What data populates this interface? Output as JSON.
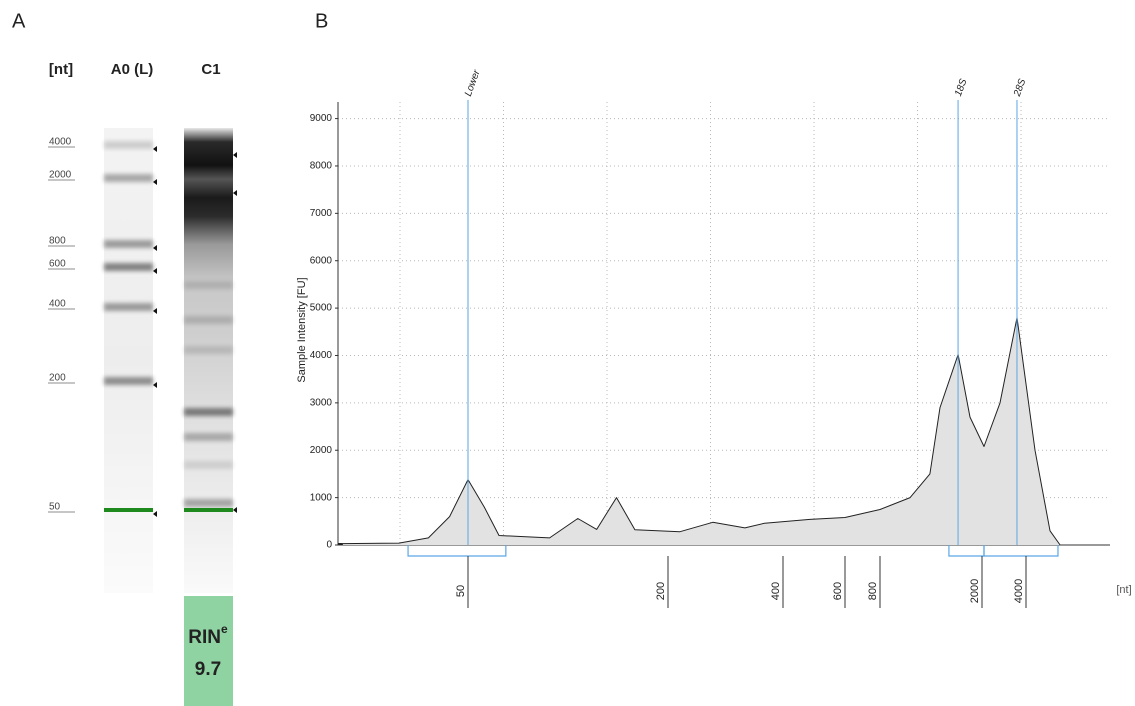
{
  "panel_a": {
    "letter": "A",
    "size_header": "[nt]",
    "lanes": [
      "A0 (L)",
      "C1"
    ],
    "ladder_sizes": [
      4000,
      2000,
      800,
      600,
      400,
      200,
      50
    ],
    "rin_label": "RIN",
    "rin_superscript": "e",
    "rin_value": 9.7
  },
  "chart_data": {
    "type": "area",
    "panel_label": "B",
    "y_label": "Sample Intensity [FU]",
    "x_unit": "[nt]",
    "x": [
      21,
      31,
      38,
      44,
      50,
      56,
      62,
      72,
      88,
      107,
      122,
      140,
      159,
      215,
      262,
      318,
      358,
      477,
      600,
      800,
      1048,
      1253,
      1372,
      1613,
      1796,
      2064,
      2656,
      3470,
      4610,
      5837,
      6840
    ],
    "values": [
      30,
      40,
      150,
      600,
      1380,
      800,
      200,
      180,
      150,
      560,
      330,
      1000,
      320,
      280,
      480,
      360,
      460,
      540,
      580,
      750,
      1000,
      1500,
      2900,
      4020,
      2700,
      2080,
      3000,
      4800,
      2000,
      300,
      0
    ],
    "ylim": [
      0,
      9350
    ],
    "yticks": [
      0,
      1000,
      2000,
      3000,
      4000,
      5000,
      6000,
      7000,
      8000,
      9000
    ],
    "xticks": [
      50,
      200,
      400,
      600,
      800,
      2000,
      4000
    ],
    "peaks": [
      {
        "label": "Lower",
        "x": 50
      },
      {
        "label": "18S",
        "x": 1613
      },
      {
        "label": "28S",
        "x": 3470
      }
    ],
    "regions": [
      [
        33,
        65
      ],
      [
        1486,
        2064
      ],
      [
        2064,
        6620
      ]
    ],
    "grid": true,
    "color": "#222222",
    "fill": "#e2e2e2",
    "marker_color": "#5aa6e6"
  }
}
